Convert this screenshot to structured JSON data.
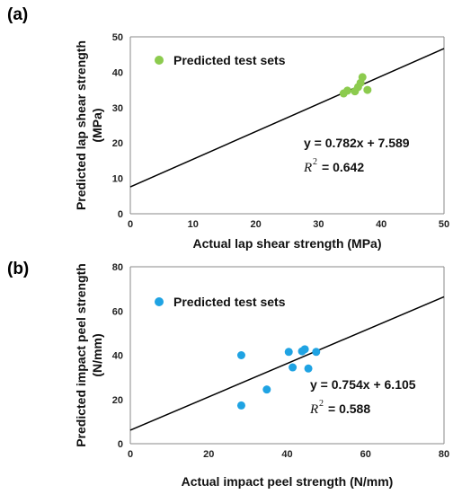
{
  "chart_data": [
    {
      "type": "scatter",
      "panel_label": "(a)",
      "xlabel": "Actual lap shear strength (MPa)",
      "ylabel_line1": "Predicted lap shear strength",
      "ylabel_line2": "(MPa)",
      "xlim": [
        0,
        50
      ],
      "ylim": [
        0,
        50
      ],
      "xticks": [
        "0",
        "10",
        "20",
        "30",
        "40",
        "50"
      ],
      "yticks": [
        "0",
        "10",
        "20",
        "30",
        "40",
        "50"
      ],
      "grid": false,
      "legend_position": "top-left",
      "series": [
        {
          "name": "Predicted test sets",
          "color": "#8CCB4E",
          "points": [
            {
              "x": 34.0,
              "y": 34.0
            },
            {
              "x": 34.6,
              "y": 34.8
            },
            {
              "x": 35.8,
              "y": 34.6
            },
            {
              "x": 36.3,
              "y": 35.8
            },
            {
              "x": 36.7,
              "y": 37.0
            },
            {
              "x": 37.0,
              "y": 38.6
            },
            {
              "x": 37.8,
              "y": 35.0
            }
          ]
        }
      ],
      "fit_line": {
        "slope": 0.782,
        "intercept": 7.589,
        "color": "#000000"
      },
      "equation": "y = 0.782x + 7.589",
      "r2_symbol": "R",
      "r2_exp": "2",
      "r2_value": "= 0.642"
    },
    {
      "type": "scatter",
      "panel_label": "(b)",
      "xlabel": "Actual impact peel strength (N/mm)",
      "ylabel_line1": "Predicted impact peel strength",
      "ylabel_line2": "(N/mm)",
      "xlim": [
        0,
        80
      ],
      "ylim": [
        0,
        80
      ],
      "xticks": [
        "0",
        "20",
        "40",
        "60",
        "80"
      ],
      "yticks": [
        "0",
        "20",
        "40",
        "60",
        "80"
      ],
      "grid": false,
      "legend_position": "top-left",
      "series": [
        {
          "name": "Predicted test sets",
          "color": "#1FA3E3",
          "points": [
            {
              "x": 28.3,
              "y": 40.0
            },
            {
              "x": 28.3,
              "y": 17.3
            },
            {
              "x": 34.8,
              "y": 24.5
            },
            {
              "x": 40.4,
              "y": 41.5
            },
            {
              "x": 41.4,
              "y": 34.5
            },
            {
              "x": 43.8,
              "y": 41.8
            },
            {
              "x": 44.5,
              "y": 42.7
            },
            {
              "x": 45.4,
              "y": 34.0
            },
            {
              "x": 47.4,
              "y": 41.5
            }
          ]
        }
      ],
      "fit_line": {
        "slope": 0.754,
        "intercept": 6.105,
        "color": "#000000"
      },
      "equation": "y = 0.754x + 6.105",
      "r2_symbol": "R",
      "r2_exp": "2",
      "r2_value": "= 0.588"
    }
  ]
}
